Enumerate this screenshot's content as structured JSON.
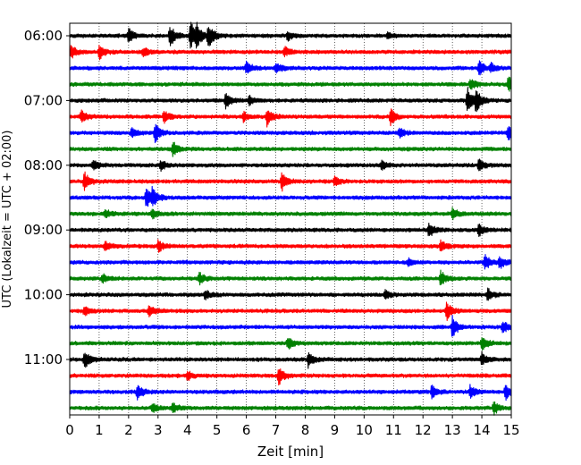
{
  "chart_data": {
    "type": "line",
    "xlabel": "Zeit  [min]",
    "ylabel": "UTC (Lokalzeit = UTC + 02:00)",
    "xlim": [
      0,
      15
    ],
    "x_ticks": [
      "0",
      "1",
      "2",
      "3",
      "4",
      "5",
      "6",
      "7",
      "8",
      "9",
      "10",
      "11",
      "12",
      "13",
      "14",
      "15"
    ],
    "y_tick_labels": [
      "06:00",
      "07:00",
      "08:00",
      "09:00",
      "10:00",
      "11:00"
    ],
    "y_tick_rows": [
      0,
      4,
      8,
      12,
      16,
      20
    ],
    "grid": "vertical dotted at each minute",
    "colors": [
      "#000000",
      "#ff0000",
      "#0000ff",
      "#008000"
    ],
    "traces": [
      {
        "start": "06:00",
        "color": "#000000",
        "events": [
          [
            2.0,
            0.5
          ],
          [
            3.4,
            0.7
          ],
          [
            4.1,
            0.9
          ],
          [
            4.3,
            0.7
          ],
          [
            4.7,
            0.8
          ],
          [
            7.4,
            0.3
          ],
          [
            10.8,
            0.2
          ]
        ]
      },
      {
        "start": "06:15",
        "color": "#ff0000",
        "events": [
          [
            0.05,
            0.4
          ],
          [
            1.0,
            0.5
          ],
          [
            2.5,
            0.3
          ],
          [
            7.3,
            0.3
          ]
        ]
      },
      {
        "start": "06:30",
        "color": "#0000ff",
        "events": [
          [
            6.0,
            0.4
          ],
          [
            7.0,
            0.4
          ],
          [
            13.9,
            0.5
          ],
          [
            14.3,
            0.3
          ]
        ]
      },
      {
        "start": "06:45",
        "color": "#008000",
        "events": [
          [
            13.6,
            0.4
          ],
          [
            14.9,
            0.5
          ]
        ]
      },
      {
        "start": "07:00",
        "color": "#000000",
        "events": [
          [
            5.3,
            0.5
          ],
          [
            6.1,
            0.3
          ],
          [
            13.5,
            0.9
          ],
          [
            13.8,
            0.7
          ]
        ]
      },
      {
        "start": "07:15",
        "color": "#ff0000",
        "events": [
          [
            0.4,
            0.4
          ],
          [
            3.2,
            0.4
          ],
          [
            5.9,
            0.3
          ],
          [
            6.7,
            0.6
          ],
          [
            10.9,
            0.5
          ]
        ]
      },
      {
        "start": "07:30",
        "color": "#0000ff",
        "events": [
          [
            2.1,
            0.3
          ],
          [
            2.9,
            0.6
          ],
          [
            11.2,
            0.3
          ],
          [
            14.9,
            0.5
          ]
        ]
      },
      {
        "start": "07:45",
        "color": "#008000",
        "events": [
          [
            3.5,
            0.5
          ]
        ]
      },
      {
        "start": "08:00",
        "color": "#000000",
        "events": [
          [
            0.8,
            0.3
          ],
          [
            3.1,
            0.3
          ],
          [
            10.6,
            0.3
          ],
          [
            13.9,
            0.4
          ]
        ]
      },
      {
        "start": "08:15",
        "color": "#ff0000",
        "events": [
          [
            0.5,
            0.6
          ],
          [
            7.2,
            0.6
          ],
          [
            9.0,
            0.3
          ]
        ]
      },
      {
        "start": "08:30",
        "color": "#0000ff",
        "events": [
          [
            2.6,
            0.7
          ],
          [
            2.8,
            0.5
          ]
        ]
      },
      {
        "start": "08:45",
        "color": "#008000",
        "events": [
          [
            1.2,
            0.3
          ],
          [
            2.8,
            0.3
          ],
          [
            13.0,
            0.4
          ]
        ]
      },
      {
        "start": "09:00",
        "color": "#000000",
        "events": [
          [
            12.2,
            0.5
          ],
          [
            13.9,
            0.4
          ]
        ]
      },
      {
        "start": "09:15",
        "color": "#ff0000",
        "events": [
          [
            1.2,
            0.3
          ],
          [
            3.0,
            0.4
          ],
          [
            12.6,
            0.4
          ]
        ]
      },
      {
        "start": "09:30",
        "color": "#0000ff",
        "events": [
          [
            11.5,
            0.2
          ],
          [
            14.1,
            0.5
          ],
          [
            14.6,
            0.4
          ]
        ]
      },
      {
        "start": "09:45",
        "color": "#008000",
        "events": [
          [
            1.1,
            0.3
          ],
          [
            4.4,
            0.4
          ],
          [
            12.6,
            0.5
          ]
        ]
      },
      {
        "start": "10:00",
        "color": "#000000",
        "events": [
          [
            4.6,
            0.3
          ],
          [
            10.7,
            0.3
          ],
          [
            14.2,
            0.4
          ]
        ]
      },
      {
        "start": "10:15",
        "color": "#ff0000",
        "events": [
          [
            0.5,
            0.3
          ],
          [
            2.7,
            0.4
          ],
          [
            12.8,
            0.6
          ]
        ]
      },
      {
        "start": "10:30",
        "color": "#0000ff",
        "events": [
          [
            13.0,
            0.8
          ],
          [
            14.7,
            0.4
          ]
        ]
      },
      {
        "start": "10:45",
        "color": "#008000",
        "events": [
          [
            7.4,
            0.4
          ],
          [
            14.0,
            0.5
          ]
        ]
      },
      {
        "start": "11:00",
        "color": "#000000",
        "events": [
          [
            0.5,
            0.6
          ],
          [
            8.1,
            0.5
          ],
          [
            14.0,
            0.4
          ]
        ]
      },
      {
        "start": "11:15",
        "color": "#ff0000",
        "events": [
          [
            4.0,
            0.3
          ],
          [
            7.1,
            0.6
          ]
        ]
      },
      {
        "start": "11:30",
        "color": "#0000ff",
        "events": [
          [
            2.3,
            0.5
          ],
          [
            12.3,
            0.4
          ],
          [
            13.6,
            0.4
          ],
          [
            14.8,
            0.5
          ]
        ]
      },
      {
        "start": "11:45",
        "color": "#008000",
        "events": [
          [
            2.8,
            0.3
          ],
          [
            3.5,
            0.3
          ],
          [
            14.4,
            0.4
          ]
        ]
      }
    ]
  }
}
